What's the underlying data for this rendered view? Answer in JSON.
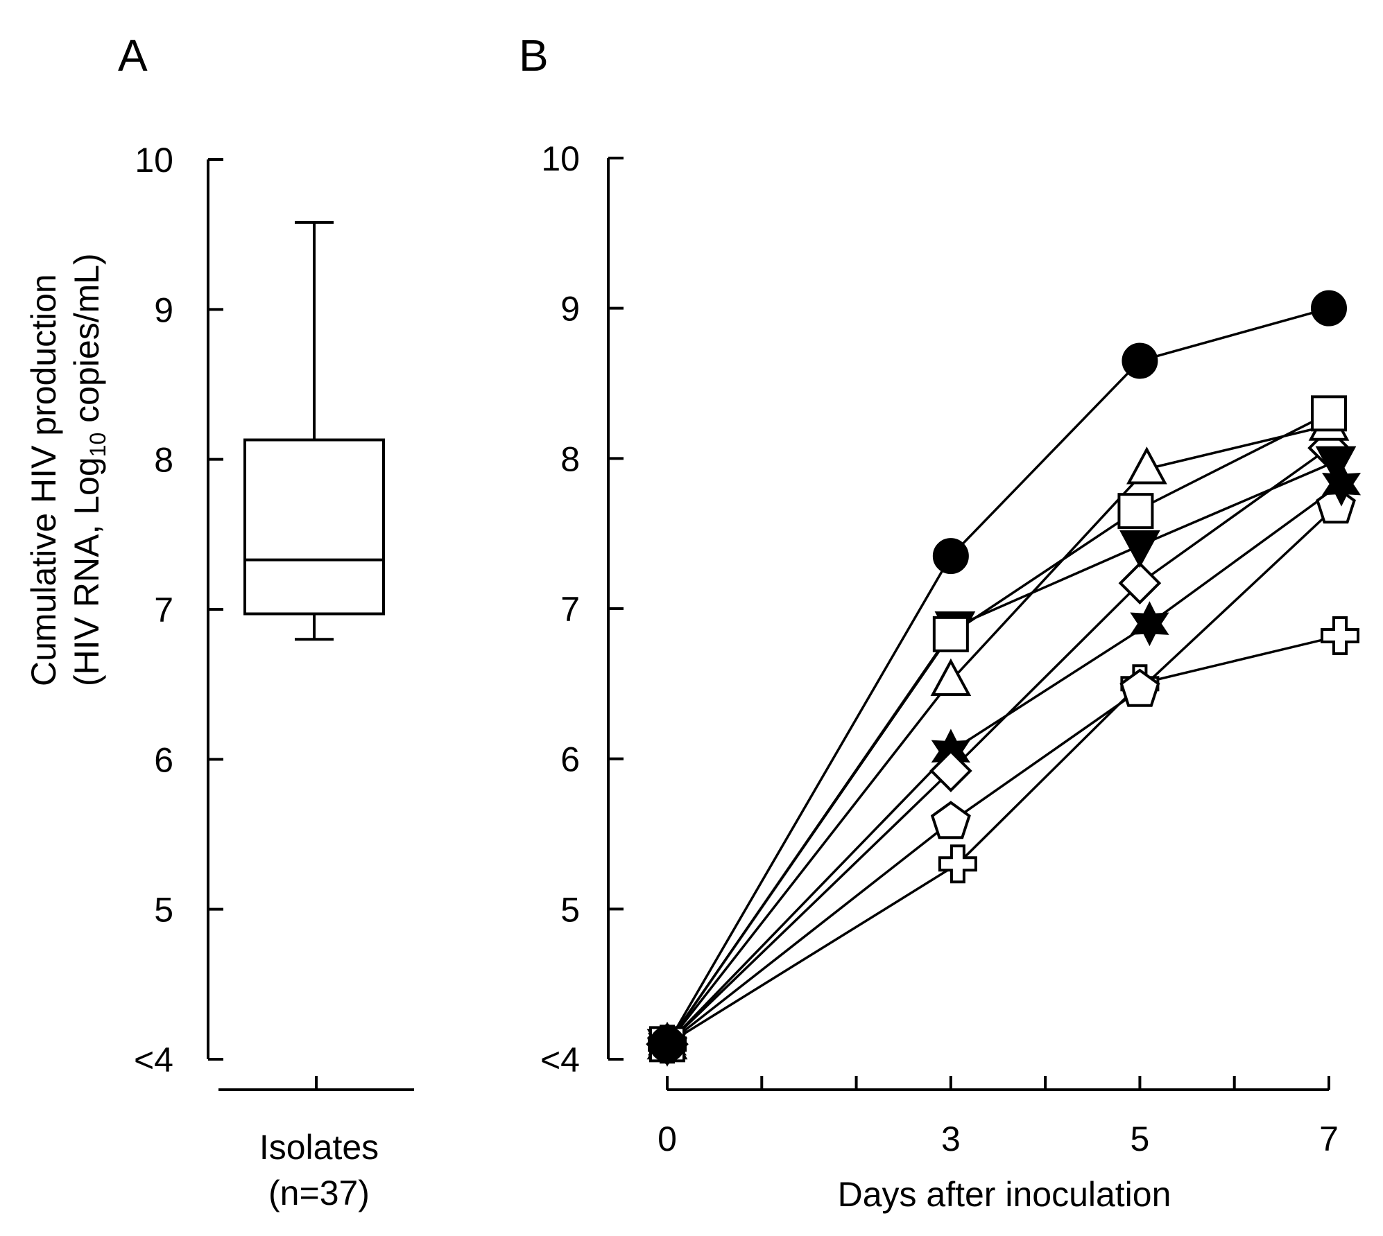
{
  "panels": {
    "A": {
      "letter": "A"
    },
    "B": {
      "letter": "B"
    }
  },
  "ylabel": {
    "line1": "Cumulative  HIV production",
    "line2_prefix": "(HIV RNA,  Log",
    "line2_sub": "10",
    "line2_suffix": " copies/mL)"
  },
  "chart_data": [
    {
      "type": "box",
      "panel": "A",
      "title": "",
      "category": "Isolates",
      "category_note": "(n=37)",
      "ylabel": "Cumulative HIV production (HIV RNA, Log10 copies/mL)",
      "ylim": [
        4,
        10
      ],
      "yticks": [
        4,
        5,
        6,
        7,
        8,
        9,
        10
      ],
      "ytick_labels": [
        "<4",
        "5",
        "6",
        "7",
        "8",
        "9",
        "10"
      ],
      "box": {
        "whisker_low": 6.8,
        "q1": 6.97,
        "median": 7.33,
        "q3": 8.13,
        "whisker_high": 9.58
      }
    },
    {
      "type": "line",
      "panel": "B",
      "xlabel": "Days after inoculation",
      "ylabel": "Cumulative HIV production (HIV RNA, Log10 copies/mL)",
      "xlim": [
        0,
        7
      ],
      "ylim": [
        4,
        10
      ],
      "xticks": [
        0,
        1,
        2,
        3,
        4,
        5,
        6,
        7
      ],
      "xtick_labels": [
        "0",
        "3",
        "5",
        "7"
      ],
      "xtick_label_positions": [
        0,
        3,
        5,
        7
      ],
      "yticks": [
        4,
        5,
        6,
        7,
        8,
        9,
        10
      ],
      "ytick_labels": [
        "<4",
        "5",
        "6",
        "7",
        "8",
        "9",
        "10"
      ],
      "x": [
        0,
        3,
        5,
        7
      ],
      "series": [
        {
          "name": "filled circle",
          "marker": "circle",
          "filled": true,
          "values": [
            4.1,
            7.35,
            8.65,
            9.0
          ]
        },
        {
          "name": "open square",
          "marker": "square",
          "filled": false,
          "values": [
            4.1,
            6.83,
            7.65,
            8.3
          ]
        },
        {
          "name": "open triangle",
          "marker": "triangle",
          "filled": false,
          "values": [
            4.1,
            6.52,
            7.93,
            8.22
          ]
        },
        {
          "name": "filled inverted triangle",
          "marker": "triangle-down",
          "filled": true,
          "values": [
            4.1,
            6.88,
            7.42,
            7.98
          ]
        },
        {
          "name": "open diamond",
          "marker": "diamond",
          "filled": false,
          "values": [
            4.1,
            5.92,
            7.17,
            8.07
          ]
        },
        {
          "name": "filled star",
          "marker": "star6",
          "filled": true,
          "values": [
            4.1,
            6.05,
            6.9,
            7.83
          ]
        },
        {
          "name": "open pentagon",
          "marker": "pentagon",
          "filled": false,
          "values": [
            4.1,
            5.58,
            6.46,
            7.68
          ]
        },
        {
          "name": "open cross",
          "marker": "cross",
          "filled": false,
          "values": [
            4.1,
            5.3,
            6.5,
            6.82
          ]
        }
      ]
    }
  ]
}
